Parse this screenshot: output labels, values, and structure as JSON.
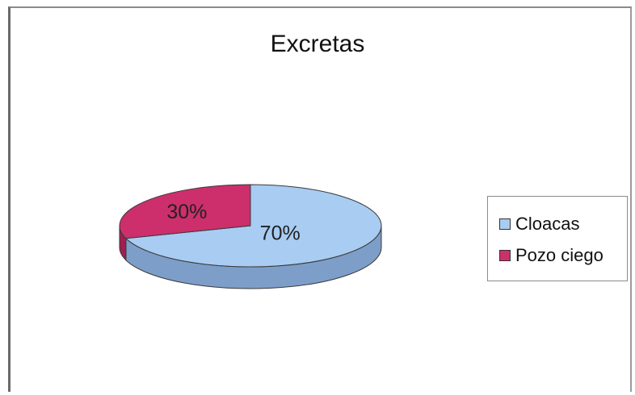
{
  "chart_data": {
    "type": "pie",
    "title": "Excretas",
    "categories": [
      "Cloacas",
      "Pozo ciego"
    ],
    "values": [
      70,
      30
    ],
    "data_labels": [
      "70%",
      "30%"
    ],
    "legend_placement": "right",
    "colors": {
      "Cloacas": "#a8ccf2",
      "Cloacas_side": "#7d9ec8",
      "Pozo ciego": "#cc2f6c",
      "Pozo ciego_side": "#9e1f52"
    },
    "style": "3d"
  }
}
